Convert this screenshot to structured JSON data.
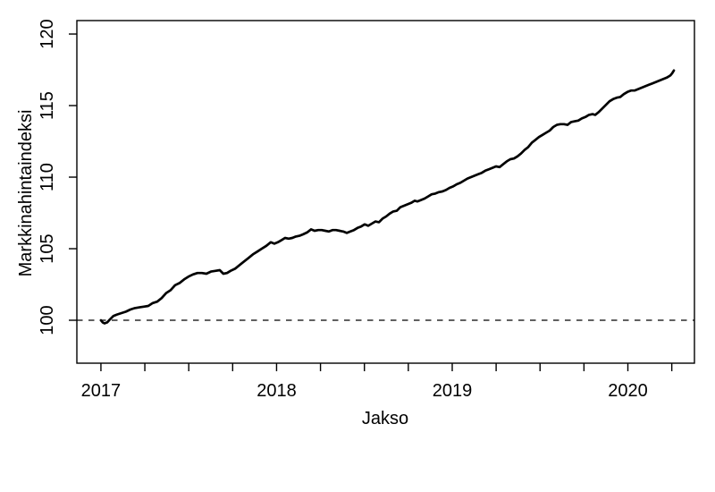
{
  "page": {
    "background": "#ffffff",
    "foreground": "#000000"
  },
  "chart_data": {
    "type": "line",
    "title": "",
    "xlabel": "Jakso",
    "ylabel": "Markkinahintaindeksi",
    "xlim": [
      2016.863,
      2020.379
    ],
    "ylim": [
      97.0,
      120.94
    ],
    "x_major_ticks": [
      2017,
      2018,
      2019,
      2020
    ],
    "x_tick_labels": [
      "2017",
      "2018",
      "2019",
      "2020"
    ],
    "x_minor_tick_step": 0.25,
    "x_minor_tick_range": [
      2017,
      2020.25
    ],
    "y_ticks": [
      100,
      105,
      110,
      115,
      120
    ],
    "y_tick_labels": [
      "100",
      "105",
      "110",
      "115",
      "120"
    ],
    "grid": false,
    "legend_position": "none",
    "line_color": "#000000",
    "reference_line": {
      "y": 100,
      "style": "dashed"
    },
    "series": [
      {
        "name": "Markkinahintaindeksi",
        "x": [
          2017.0,
          2017.0102,
          2017.0204,
          2017.0356,
          2017.0509,
          2017.0712,
          2017.0916,
          2017.117,
          2017.1425,
          2017.1679,
          2017.1934,
          2017.2188,
          2017.2443,
          2017.2697,
          2017.2952,
          2017.3206,
          2017.3461,
          2017.3715,
          2017.3969,
          2017.4224,
          2017.4478,
          2017.4733,
          2017.4987,
          2017.5242,
          2017.5496,
          2017.5751,
          2017.6005,
          2017.626,
          2017.6514,
          2017.6768,
          2017.6972,
          2017.7176,
          2017.7379,
          2017.7634,
          2017.7888,
          2017.8142,
          2017.8397,
          2017.8651,
          2017.8906,
          2017.916,
          2017.9415,
          2017.9669,
          2017.9873,
          2018.0076,
          2018.028,
          2018.0483,
          2018.0687,
          2018.0891,
          2018.1094,
          2018.1298,
          2018.1501,
          2018.1756,
          2018.1959,
          2018.2163,
          2018.2366,
          2018.257,
          2018.2774,
          2018.2977,
          2018.3181,
          2018.3384,
          2018.3588,
          2018.3791,
          2018.3995,
          2018.4198,
          2018.4402,
          2018.4606,
          2018.4809,
          2018.5013,
          2018.5216,
          2018.542,
          2018.5623,
          2018.5827,
          2018.6031,
          2018.6234,
          2018.6438,
          2018.6641,
          2018.6845,
          2018.7048,
          2018.7252,
          2018.7455,
          2018.7659,
          2018.7863,
          2018.8015,
          2018.8219,
          2018.8422,
          2018.8626,
          2018.883,
          2018.9033,
          2018.9237,
          2018.944,
          2018.9644,
          2018.9847,
          2019.0051,
          2019.0254,
          2019.0458,
          2019.0662,
          2019.0865,
          2019.1069,
          2019.1272,
          2019.1476,
          2019.1679,
          2019.1883,
          2019.2086,
          2019.229,
          2019.2494,
          2019.2697,
          2019.2901,
          2019.3104,
          2019.3308,
          2019.3511,
          2019.3715,
          2019.3918,
          2019.4122,
          2019.4326,
          2019.4529,
          2019.4733,
          2019.4936,
          2019.514,
          2019.5343,
          2019.5547,
          2019.5751,
          2019.5954,
          2019.6158,
          2019.6361,
          2019.6565,
          2019.6768,
          2019.6972,
          2019.7176,
          2019.7379,
          2019.7583,
          2019.7786,
          2019.799,
          2019.8142,
          2019.8346,
          2019.855,
          2019.8753,
          2019.8957,
          2019.916,
          2019.9364,
          2019.9567,
          2019.9771,
          2019.9975,
          2020.0178,
          2020.0382,
          2020.0585,
          2020.0789,
          2020.0992,
          2020.1196,
          2020.14,
          2020.1603,
          2020.1807,
          2020.201,
          2020.2214,
          2020.2417,
          2020.2519,
          2020.2621
        ],
        "y": [
          100.0,
          99.85,
          99.78,
          99.85,
          100.05,
          100.3,
          100.4,
          100.5,
          100.6,
          100.75,
          100.85,
          100.9,
          100.95,
          101.0,
          101.2,
          101.3,
          101.55,
          101.9,
          102.1,
          102.45,
          102.6,
          102.85,
          103.05,
          103.2,
          103.3,
          103.3,
          103.25,
          103.4,
          103.45,
          103.5,
          103.25,
          103.3,
          103.45,
          103.6,
          103.85,
          104.1,
          104.35,
          104.6,
          104.8,
          105.0,
          105.2,
          105.45,
          105.35,
          105.45,
          105.6,
          105.75,
          105.7,
          105.75,
          105.85,
          105.9,
          106.0,
          106.15,
          106.35,
          106.25,
          106.3,
          106.3,
          106.25,
          106.2,
          106.3,
          106.3,
          106.25,
          106.2,
          106.1,
          106.2,
          106.3,
          106.45,
          106.55,
          106.7,
          106.6,
          106.75,
          106.9,
          106.85,
          107.1,
          107.25,
          107.45,
          107.6,
          107.65,
          107.9,
          108.0,
          108.1,
          108.2,
          108.35,
          108.3,
          108.4,
          108.5,
          108.65,
          108.8,
          108.85,
          108.95,
          109.0,
          109.1,
          109.25,
          109.35,
          109.5,
          109.6,
          109.75,
          109.9,
          110.0,
          110.1,
          110.2,
          110.3,
          110.45,
          110.55,
          110.65,
          110.75,
          110.7,
          110.9,
          111.1,
          111.25,
          111.3,
          111.45,
          111.65,
          111.9,
          112.1,
          112.4,
          112.6,
          112.8,
          112.95,
          113.1,
          113.25,
          113.5,
          113.65,
          113.7,
          113.7,
          113.65,
          113.85,
          113.9,
          113.95,
          114.1,
          114.2,
          114.35,
          114.4,
          114.35,
          114.55,
          114.8,
          115.05,
          115.3,
          115.45,
          115.55,
          115.6,
          115.8,
          115.95,
          116.05,
          116.05,
          116.15,
          116.25,
          116.35,
          116.45,
          116.55,
          116.65,
          116.75,
          116.85,
          116.95,
          117.1,
          117.25,
          117.45
        ]
      }
    ]
  }
}
